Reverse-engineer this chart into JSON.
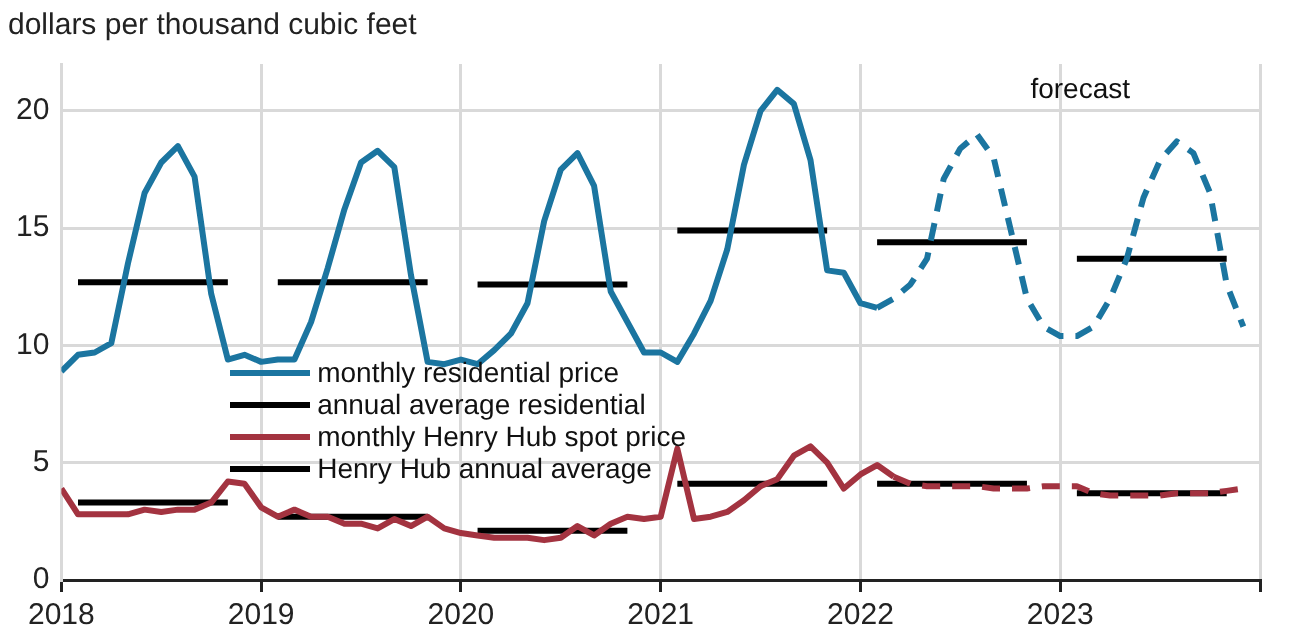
{
  "chart_data": {
    "type": "line",
    "ylabel": "dollars per thousand cubic feet",
    "annotations": [
      "forecast"
    ],
    "xlim": [
      "2018-01",
      "2024-01"
    ],
    "xticks": [
      "2018",
      "2019",
      "2020",
      "2021",
      "2022",
      "2023",
      {
        "value": "2024",
        "label": null
      }
    ],
    "ylim": [
      0,
      22
    ],
    "yticks": [
      0,
      5,
      10,
      15,
      20
    ],
    "grid": true,
    "legend": "center left",
    "marker": "none",
    "series": [
      {
        "name": "monthly residential price",
        "color": "#1b75a0",
        "line_style": "solid",
        "x": [
          "2018-01",
          "2018-02",
          "2018-03",
          "2018-04",
          "2018-05",
          "2018-06",
          "2018-07",
          "2018-08",
          "2018-09",
          "2018-10",
          "2018-11",
          "2018-12",
          "2019-01",
          "2019-02",
          "2019-03",
          "2019-04",
          "2019-05",
          "2019-06",
          "2019-07",
          "2019-08",
          "2019-09",
          "2019-10",
          "2019-11",
          "2019-12",
          "2020-01",
          "2020-02",
          "2020-03",
          "2020-04",
          "2020-05",
          "2020-06",
          "2020-07",
          "2020-08",
          "2020-09",
          "2020-10",
          "2020-11",
          "2020-12",
          "2021-01",
          "2021-02",
          "2021-03",
          "2021-04",
          "2021-05",
          "2021-06",
          "2021-07",
          "2021-08",
          "2021-09",
          "2021-10",
          "2021-11",
          "2021-12",
          "2022-01",
          "2022-02"
        ],
        "values": [
          8.9,
          9.6,
          9.7,
          10.1,
          13.5,
          16.5,
          17.8,
          18.5,
          17.2,
          12.2,
          9.4,
          9.6,
          9.3,
          9.4,
          9.4,
          11.0,
          13.3,
          15.8,
          17.8,
          18.3,
          17.6,
          13.0,
          9.3,
          9.2,
          9.4,
          9.2,
          9.8,
          10.5,
          11.8,
          15.3,
          17.5,
          18.2,
          16.8,
          12.3,
          11.0,
          9.7,
          9.7,
          9.3,
          10.5,
          11.9,
          14.1,
          17.7,
          20.0,
          20.9,
          20.3,
          17.9,
          13.2,
          13.1,
          11.8,
          11.6
        ]
      },
      {
        "color": "#1b75a0",
        "line_style": "dashed",
        "x": [
          "2022-02",
          "2022-03",
          "2022-04",
          "2022-05",
          "2022-06",
          "2022-07",
          "2022-08",
          "2022-09",
          "2022-10",
          "2022-11",
          "2022-12",
          "2023-01",
          "2023-02",
          "2023-03",
          "2023-04",
          "2023-05",
          "2023-06",
          "2023-07",
          "2023-08",
          "2023-09",
          "2023-10",
          "2023-11",
          "2023-12"
        ],
        "values": [
          11.6,
          12.0,
          12.6,
          13.7,
          17.1,
          18.4,
          19.0,
          18.0,
          15.0,
          12.0,
          10.8,
          10.4,
          10.4,
          10.8,
          12.0,
          13.7,
          16.3,
          17.9,
          18.7,
          18.2,
          16.5,
          12.6,
          10.8
        ]
      },
      {
        "name": "annual average residential",
        "color": "#000000",
        "line_style": "solid",
        "x": [
          "2018-02",
          "2018-11",
          "2018-12",
          "2019-02",
          "2019-11",
          "2019-12",
          "2020-02",
          "2020-11",
          "2020-12",
          "2021-02",
          "2021-11",
          "2021-12",
          "2022-02",
          "2022-11",
          "2022-12",
          "2023-02",
          "2023-11"
        ],
        "values": [
          12.7,
          12.7,
          null,
          12.7,
          12.7,
          null,
          12.6,
          12.6,
          null,
          14.9,
          14.9,
          null,
          14.4,
          14.4,
          null,
          13.7,
          13.7
        ]
      },
      {
        "name": "monthly Henry Hub spot price",
        "color": "#a33340",
        "line_style": "solid",
        "x": [
          "2018-01",
          "2018-02",
          "2018-03",
          "2018-04",
          "2018-05",
          "2018-06",
          "2018-07",
          "2018-08",
          "2018-09",
          "2018-10",
          "2018-11",
          "2018-12",
          "2019-01",
          "2019-02",
          "2019-03",
          "2019-04",
          "2019-05",
          "2019-06",
          "2019-07",
          "2019-08",
          "2019-09",
          "2019-10",
          "2019-11",
          "2019-12",
          "2020-01",
          "2020-02",
          "2020-03",
          "2020-04",
          "2020-05",
          "2020-06",
          "2020-07",
          "2020-08",
          "2020-09",
          "2020-10",
          "2020-11",
          "2020-12",
          "2021-01",
          "2021-02",
          "2021-03",
          "2021-04",
          "2021-05",
          "2021-06",
          "2021-07",
          "2021-08",
          "2021-09",
          "2021-10",
          "2021-11",
          "2021-12",
          "2022-01",
          "2022-02",
          "2022-03"
        ],
        "values": [
          3.9,
          2.8,
          2.8,
          2.8,
          2.8,
          3.0,
          2.9,
          3.0,
          3.0,
          3.3,
          4.2,
          4.1,
          3.1,
          2.7,
          3.0,
          2.7,
          2.7,
          2.4,
          2.4,
          2.2,
          2.6,
          2.3,
          2.7,
          2.2,
          2.0,
          1.9,
          1.8,
          1.8,
          1.8,
          1.7,
          1.8,
          2.3,
          1.9,
          2.4,
          2.7,
          2.6,
          2.7,
          5.6,
          2.6,
          2.7,
          2.9,
          3.4,
          4.0,
          4.3,
          5.3,
          5.7,
          5.0,
          3.9,
          4.5,
          4.9,
          4.4
        ]
      },
      {
        "color": "#a33340",
        "line_style": "dashed",
        "x": [
          "2022-03",
          "2022-04",
          "2022-05",
          "2022-06",
          "2022-07",
          "2022-08",
          "2022-09",
          "2022-10",
          "2022-11",
          "2022-12",
          "2023-01",
          "2023-02",
          "2023-03",
          "2023-04",
          "2023-05",
          "2023-06",
          "2023-07",
          "2023-08",
          "2023-09",
          "2023-10",
          "2023-11",
          "2023-12"
        ],
        "values": [
          4.4,
          4.1,
          4.0,
          4.0,
          4.0,
          4.0,
          3.9,
          3.9,
          3.9,
          4.0,
          4.0,
          4.0,
          3.7,
          3.6,
          3.6,
          3.6,
          3.6,
          3.7,
          3.7,
          3.7,
          3.8,
          3.9
        ]
      },
      {
        "name": "Henry Hub annual average",
        "color": "#000000",
        "line_style": "solid",
        "x": [
          "2018-02",
          "2018-11",
          "2018-12",
          "2019-02",
          "2019-11",
          "2019-12",
          "2020-02",
          "2020-11",
          "2020-12",
          "2021-02",
          "2021-11",
          "2021-12",
          "2022-02",
          "2022-11",
          "2022-12",
          "2023-02",
          "2023-11"
        ],
        "values": [
          3.3,
          3.3,
          null,
          2.7,
          2.7,
          null,
          2.1,
          2.1,
          null,
          4.1,
          4.1,
          null,
          4.1,
          4.1,
          null,
          3.7,
          3.7
        ]
      }
    ]
  }
}
